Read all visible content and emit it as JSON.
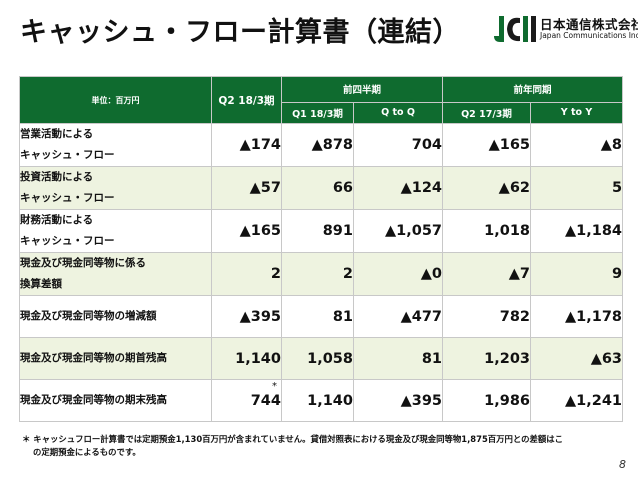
{
  "title": "キャッシュ・フロー計算書（連結）",
  "logo": {
    "mark_text": "JCI",
    "jp_name": "日本通信株式会社",
    "en_name": "Japan Communications Inc.",
    "colors": {
      "green": "#0f6b2f",
      "dark": "#1b1b1b"
    }
  },
  "table": {
    "unit_label": "単位：百万円",
    "q2_header": "Q2 18/3期",
    "groups": [
      {
        "label": "前四半期"
      },
      {
        "label": "前年同期"
      }
    ],
    "subheaders": [
      "Q1 18/3期",
      "Q to Q",
      "Q2 17/3期",
      "Y to Y"
    ],
    "rows": [
      {
        "label1": "営業活動による",
        "label2": "キャッシュ・フロー",
        "values": [
          "▲174",
          "▲878",
          "704",
          "▲165",
          "▲8"
        ]
      },
      {
        "label1": "投資活動による",
        "label2": "キャッシュ・フロー",
        "values": [
          "▲57",
          "66",
          "▲124",
          "▲62",
          "5"
        ]
      },
      {
        "label1": "財務活動による",
        "label2": "キャッシュ・フロー",
        "values": [
          "▲165",
          "891",
          "▲1,057",
          "1,018",
          "▲1,184"
        ]
      },
      {
        "label1": "現金及び現金同等物に係る",
        "label2": "換算差額",
        "values": [
          "2",
          "2",
          "▲0",
          "▲7",
          "9"
        ]
      },
      {
        "label1": "現金及び現金同等物の増減額",
        "label2": "",
        "values": [
          "▲395",
          "81",
          "▲477",
          "782",
          "▲1,178"
        ]
      },
      {
        "label1": "現金及び現金同等物の期首残高",
        "label2": "",
        "values": [
          "1,140",
          "1,058",
          "81",
          "1,203",
          "▲63"
        ]
      },
      {
        "label1": "現金及び現金同等物の期末残高",
        "label2": "",
        "values": [
          "744",
          "1,140",
          "▲395",
          "1,986",
          "▲1,241"
        ]
      }
    ],
    "asterisk": "*",
    "header_color": "#0f6b2f",
    "alt_row_color": "#eef3e0"
  },
  "footnote": {
    "line1": "＊ キャッシュフロー計算書では定期預金1,130百万円が含まれていません。貸借対照表における現金及び現金同等物1,875百万円との差額はこ",
    "line2": "の定期預金によるものです。"
  },
  "page_number": "8"
}
